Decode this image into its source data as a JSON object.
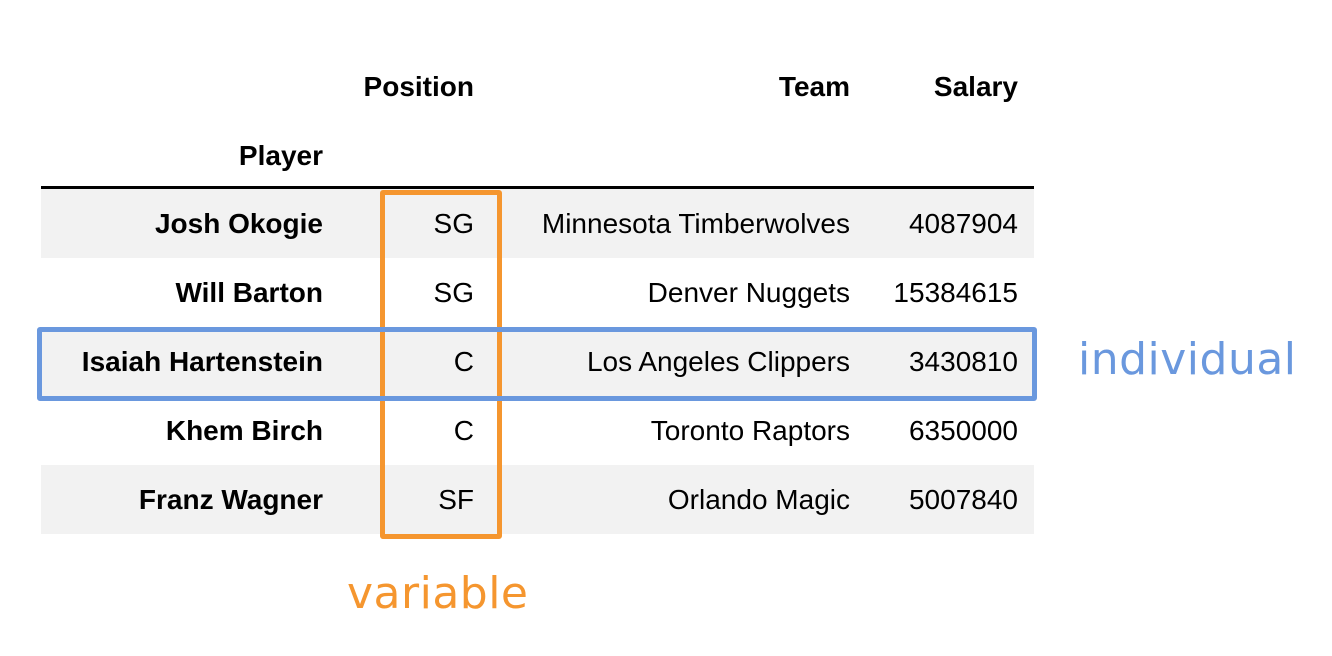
{
  "table": {
    "columns": [
      "Position",
      "Team",
      "Salary"
    ],
    "index_name": "Player",
    "rows": [
      {
        "player": "Josh Okogie",
        "position": "SG",
        "team": "Minnesota Timberwolves",
        "salary": "4087904"
      },
      {
        "player": "Will Barton",
        "position": "SG",
        "team": "Denver Nuggets",
        "salary": "15384615"
      },
      {
        "player": "Isaiah Hartenstein",
        "position": "C",
        "team": "Los Angeles Clippers",
        "salary": "3430810"
      },
      {
        "player": "Khem Birch",
        "position": "C",
        "team": "Toronto Raptors",
        "salary": "6350000"
      },
      {
        "player": "Franz Wagner",
        "position": "SF",
        "team": "Orlando Magic",
        "salary": "5007840"
      }
    ]
  },
  "annotations": {
    "variable_label": "variable",
    "individual_label": "individual",
    "variable_color": "#f5962f",
    "individual_color": "#6a98de"
  }
}
